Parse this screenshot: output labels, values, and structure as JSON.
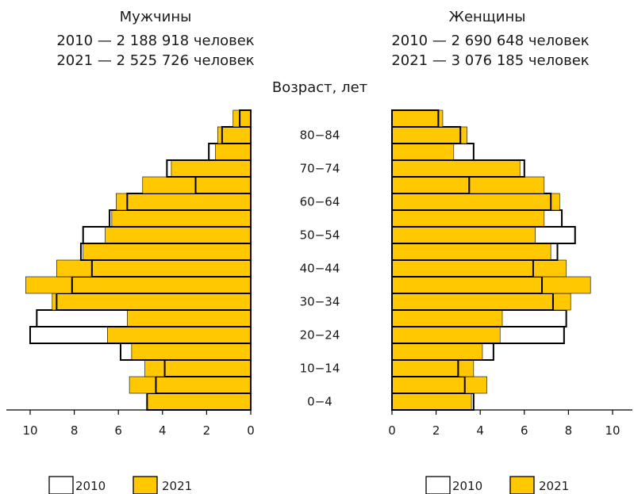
{
  "chart_data": {
    "type": "bar",
    "title": "",
    "age_axis_label": "Возраст, лет",
    "age_groups": [
      "0−4",
      "5−9",
      "10−14",
      "15−19",
      "20−24",
      "25−29",
      "30−34",
      "35−39",
      "40−44",
      "45−49",
      "50−54",
      "55−59",
      "60−64",
      "65−69",
      "70−74",
      "75−79",
      "80−84",
      "85+"
    ],
    "age_tick_labels": [
      "0−4",
      "10−14",
      "20−24",
      "30−34",
      "40−44",
      "50−54",
      "60−64",
      "70−74",
      "80−84"
    ],
    "xlim": [
      0,
      11
    ],
    "x_ticks": [
      0,
      2,
      4,
      6,
      8,
      10
    ],
    "x_tick_labels": [
      "0",
      "2",
      "4",
      "6",
      "8",
      "10"
    ],
    "colors": {
      "2010": "#ffffff",
      "2021": "#ffc800",
      "outline": "#000000"
    },
    "legend": {
      "placement": "bottom",
      "labels": [
        "2010",
        "2021"
      ]
    },
    "panels": [
      {
        "side": "left",
        "title": "Мужчины",
        "subtitle_2010": "2010 — 2 188 918 человек",
        "subtitle_2021": "2021 — 2 525 726 человек",
        "series": [
          {
            "name": "2010",
            "values": [
              4.7,
              4.3,
              3.9,
              5.9,
              10.0,
              9.7,
              8.8,
              8.1,
              7.2,
              7.7,
              7.6,
              6.4,
              5.6,
              2.5,
              3.8,
              1.9,
              1.3,
              0.5
            ]
          },
          {
            "name": "2021",
            "values": [
              4.7,
              5.5,
              4.8,
              5.4,
              6.5,
              5.6,
              9.0,
              10.2,
              8.8,
              7.6,
              6.6,
              6.3,
              6.1,
              4.9,
              3.6,
              1.6,
              1.5,
              0.8
            ]
          }
        ]
      },
      {
        "side": "right",
        "title": "Женщины",
        "subtitle_2010": "2010 — 2 690 648 человек",
        "subtitle_2021": "2021 — 3 076 185 человек",
        "series": [
          {
            "name": "2010",
            "values": [
              3.7,
              3.3,
              3.0,
              4.6,
              7.8,
              7.9,
              7.3,
              6.8,
              6.4,
              7.5,
              8.3,
              7.7,
              7.2,
              3.5,
              6.0,
              3.7,
              3.1,
              2.1
            ]
          },
          {
            "name": "2021",
            "values": [
              3.6,
              4.3,
              3.7,
              4.1,
              4.9,
              5.0,
              8.1,
              9.0,
              7.9,
              7.2,
              6.5,
              6.9,
              7.6,
              6.9,
              5.8,
              2.8,
              3.4,
              2.3
            ]
          }
        ]
      }
    ]
  }
}
